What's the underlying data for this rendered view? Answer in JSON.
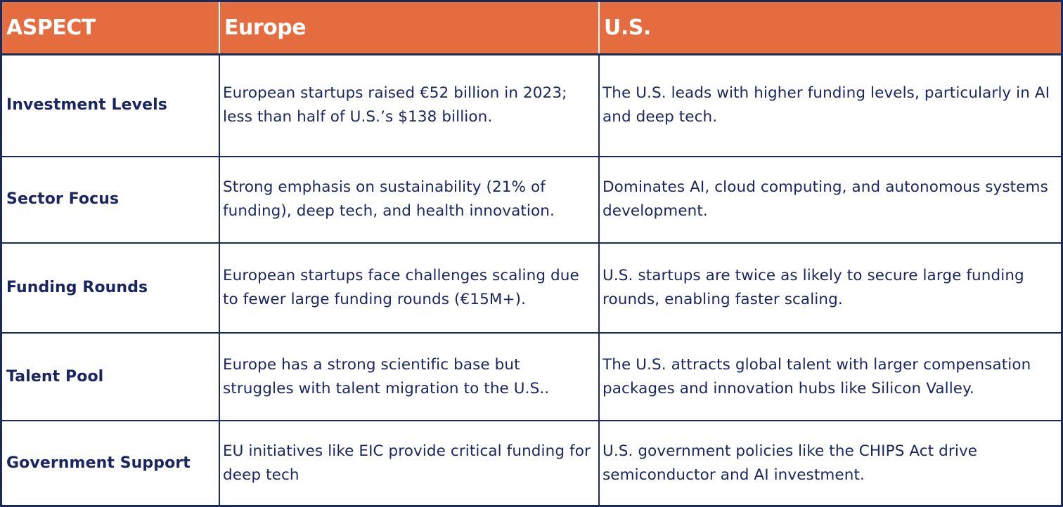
{
  "table": {
    "headers": [
      "ASPECT",
      "Europe",
      "U.S."
    ],
    "rows": [
      {
        "aspect": "Investment Levels",
        "europe": "European startups raised €52 billion in 2023; less than half of U.S.’s $138 billion.",
        "us": "The U.S. leads with higher funding levels, particularly in AI and deep tech."
      },
      {
        "aspect": "Sector Focus",
        "europe": "Strong emphasis on sustainability (21% of funding), deep tech, and health innovation.",
        "us": "Dominates AI, cloud computing, and autonomous systems development."
      },
      {
        "aspect": "Funding Rounds",
        "europe": "European startups face challenges scaling due to fewer large funding rounds (€15M+).",
        "us": "U.S. startups are twice as likely to secure large funding rounds, enabling faster scaling."
      },
      {
        "aspect": "Talent Pool",
        "europe": "Europe has a strong scientific base but struggles with talent migration to the U.S..",
        "us": "The U.S. attracts global talent with larger compensation packages and innovation hubs like Silicon Valley."
      },
      {
        "aspect": "Government Support",
        "europe": "EU initiatives like EIC provide critical funding for deep tech",
        "us": "U.S. government policies like the CHIPS Act drive semiconductor and AI investment."
      }
    ]
  },
  "colors": {
    "header_bg": "#e46c3f",
    "header_text": "#ffffff",
    "body_text": "#1a2660",
    "border": "#1a2a5c"
  }
}
